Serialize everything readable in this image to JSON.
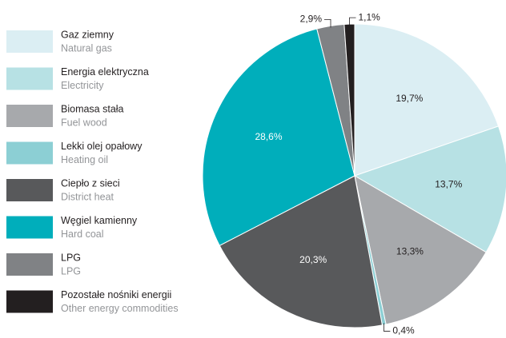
{
  "chart_data": {
    "type": "pie",
    "categories": [
      "Gaz ziemny",
      "Energia elektryczna",
      "Biomasa stała",
      "Lekki olej opałowy",
      "Ciepło z sieci",
      "Węgiel kamienny",
      "LPG",
      "Pozostałe nośniki energii"
    ],
    "categories_en": [
      "Natural gas",
      "Electricity",
      "Fuel wood",
      "Heating oil",
      "District heat",
      "Hard coal",
      "LPG",
      "Other energy commodities"
    ],
    "values": [
      19.7,
      13.7,
      13.3,
      0.4,
      20.3,
      28.6,
      2.9,
      1.1
    ],
    "value_labels": [
      "19,7%",
      "13,7%",
      "13,3%",
      "0,4%",
      "20,3%",
      "28,6%",
      "2,9%",
      "1,1%"
    ],
    "colors": [
      "#dbeef3",
      "#b7e1e4",
      "#a7a9ac",
      "#8ccfd4",
      "#58595b",
      "#00aebb",
      "#808285",
      "#231f20"
    ]
  }
}
